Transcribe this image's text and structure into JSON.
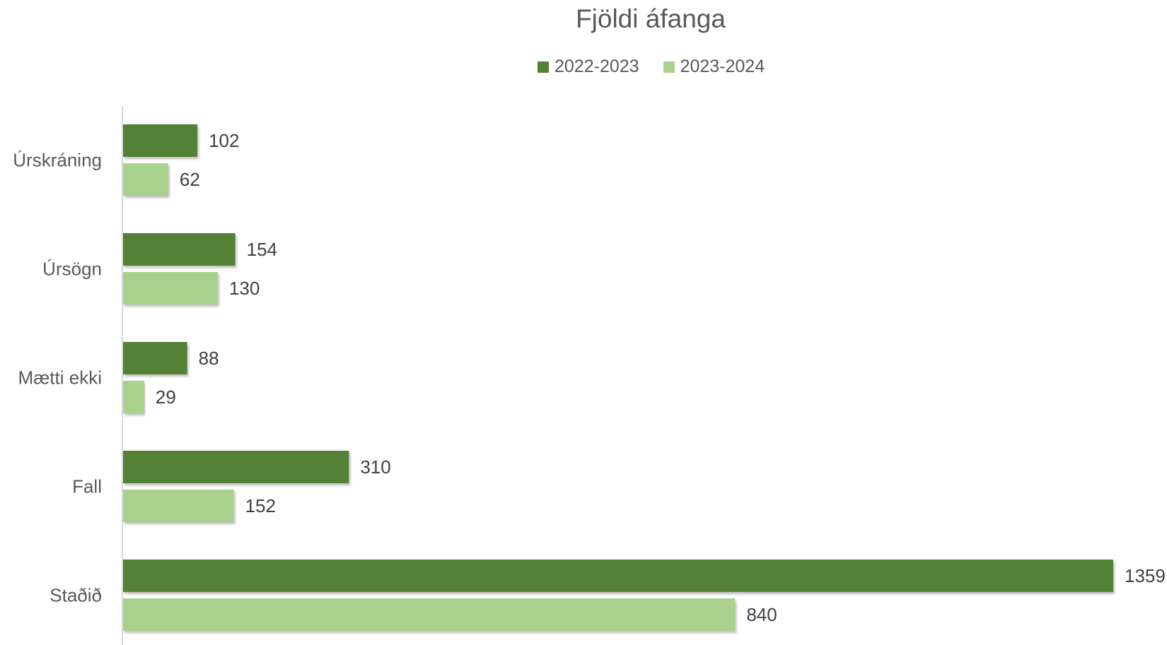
{
  "chart_data": {
    "type": "bar",
    "orientation": "horizontal",
    "title": "Fjöldi áfanga",
    "categories": [
      "Úrskráning",
      "Úrsögn",
      "Mætti ekki",
      "Fall",
      "Staðið"
    ],
    "series": [
      {
        "name": "2022-2023",
        "values": [
          102,
          154,
          88,
          310,
          1359
        ],
        "color": "#538135"
      },
      {
        "name": "2023-2024",
        "values": [
          62,
          130,
          29,
          152,
          840
        ],
        "color": "#a9d18e"
      }
    ],
    "legend_position": "top",
    "xlim": [
      0,
      1359
    ],
    "grid": false,
    "data_labels": true
  }
}
